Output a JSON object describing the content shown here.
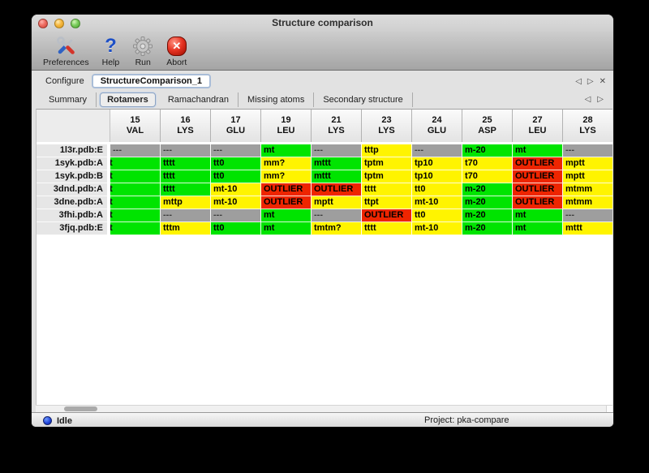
{
  "window": {
    "title": "Structure comparison"
  },
  "toolbar": {
    "items": [
      {
        "label": "Preferences",
        "icon": "preferences-tools-icon"
      },
      {
        "label": "Help",
        "icon": "help-question-icon"
      },
      {
        "label": "Run",
        "icon": "run-gear-icon"
      },
      {
        "label": "Abort",
        "icon": "abort-icon"
      }
    ]
  },
  "configure": {
    "label": "Configure",
    "value": "StructureComparison_1",
    "nav_prev": "◁",
    "nav_next": "▷",
    "nav_close": "✕"
  },
  "tabs": {
    "items": [
      {
        "label": "Summary",
        "selected": false
      },
      {
        "label": "Rotamers",
        "selected": true
      },
      {
        "label": "Ramachandran",
        "selected": false
      },
      {
        "label": "Missing atoms",
        "selected": false
      },
      {
        "label": "Secondary structure",
        "selected": false
      }
    ],
    "nav_prev": "◁",
    "nav_next": "▷"
  },
  "colors": {
    "g": "#00e400",
    "y": "#fff400",
    "r": "#ee2500",
    "x": "#9e9e9e"
  },
  "color_legend": {
    "g": "favored",
    "y": "allowed",
    "r": "outlier",
    "x": "not-present"
  },
  "table": {
    "columns": [
      {
        "num": "15",
        "res": "VAL"
      },
      {
        "num": "16",
        "res": "LYS"
      },
      {
        "num": "17",
        "res": "GLU"
      },
      {
        "num": "19",
        "res": "LEU"
      },
      {
        "num": "21",
        "res": "LYS"
      },
      {
        "num": "23",
        "res": "LYS"
      },
      {
        "num": "24",
        "res": "GLU"
      },
      {
        "num": "25",
        "res": "ASP"
      },
      {
        "num": "27",
        "res": "LEU"
      },
      {
        "num": "28",
        "res": "LYS"
      }
    ],
    "rows": [
      {
        "label": "1l3r.pdb:E",
        "cells": [
          {
            "v": "---",
            "c": "x"
          },
          {
            "v": "---",
            "c": "x"
          },
          {
            "v": "---",
            "c": "x"
          },
          {
            "v": "mt",
            "c": "g"
          },
          {
            "v": "---",
            "c": "x"
          },
          {
            "v": "tttp",
            "c": "y"
          },
          {
            "v": "---",
            "c": "x"
          },
          {
            "v": "m-20",
            "c": "g"
          },
          {
            "v": "mt",
            "c": "g"
          },
          {
            "v": "---",
            "c": "x"
          },
          {
            "v": "",
            "c": "g",
            "f": "part"
          }
        ]
      },
      {
        "label": "1syk.pdb:A",
        "cells": [
          {
            "v": "t",
            "c": "g",
            "f": "clip"
          },
          {
            "v": "tttt",
            "c": "g"
          },
          {
            "v": "tt0",
            "c": "g"
          },
          {
            "v": "mm?",
            "c": "y"
          },
          {
            "v": "mttt",
            "c": "g"
          },
          {
            "v": "tptm",
            "c": "y"
          },
          {
            "v": "tp10",
            "c": "y"
          },
          {
            "v": "t70",
            "c": "y"
          },
          {
            "v": "OUTLIER",
            "c": "r"
          },
          {
            "v": "mptt",
            "c": "y"
          },
          {
            "v": "",
            "c": "g",
            "f": "part"
          }
        ]
      },
      {
        "label": "1syk.pdb:B",
        "cells": [
          {
            "v": "t",
            "c": "g",
            "f": "clip"
          },
          {
            "v": "tttt",
            "c": "g"
          },
          {
            "v": "tt0",
            "c": "g"
          },
          {
            "v": "mm?",
            "c": "y"
          },
          {
            "v": "mttt",
            "c": "g"
          },
          {
            "v": "tptm",
            "c": "y"
          },
          {
            "v": "tp10",
            "c": "y"
          },
          {
            "v": "t70",
            "c": "y"
          },
          {
            "v": "OUTLIER",
            "c": "r"
          },
          {
            "v": "mptt",
            "c": "y"
          },
          {
            "v": "",
            "c": "g",
            "f": "part"
          }
        ]
      },
      {
        "label": "3dnd.pdb:A",
        "cells": [
          {
            "v": "t",
            "c": "g",
            "f": "clip"
          },
          {
            "v": "tttt",
            "c": "g"
          },
          {
            "v": "mt-10",
            "c": "y"
          },
          {
            "v": "OUTLIER",
            "c": "r"
          },
          {
            "v": "OUTLIER",
            "c": "r"
          },
          {
            "v": "tttt",
            "c": "y"
          },
          {
            "v": "tt0",
            "c": "y"
          },
          {
            "v": "m-20",
            "c": "g"
          },
          {
            "v": "OUTLIER",
            "c": "r"
          },
          {
            "v": "mtmm",
            "c": "y"
          },
          {
            "v": "",
            "c": "g",
            "f": "part"
          }
        ]
      },
      {
        "label": "3dne.pdb:A",
        "cells": [
          {
            "v": "t",
            "c": "g",
            "f": "clip"
          },
          {
            "v": "mttp",
            "c": "y"
          },
          {
            "v": "mt-10",
            "c": "y"
          },
          {
            "v": "OUTLIER",
            "c": "r"
          },
          {
            "v": "mptt",
            "c": "y"
          },
          {
            "v": "ttpt",
            "c": "y"
          },
          {
            "v": "mt-10",
            "c": "y"
          },
          {
            "v": "m-20",
            "c": "g"
          },
          {
            "v": "OUTLIER",
            "c": "r"
          },
          {
            "v": "mtmm",
            "c": "y"
          },
          {
            "v": "",
            "c": "g",
            "f": "part"
          }
        ]
      },
      {
        "label": "3fhi.pdb:A",
        "cells": [
          {
            "v": "t",
            "c": "g",
            "f": "clip"
          },
          {
            "v": "---",
            "c": "x"
          },
          {
            "v": "---",
            "c": "x"
          },
          {
            "v": "mt",
            "c": "g"
          },
          {
            "v": "---",
            "c": "x"
          },
          {
            "v": "OUTLIER",
            "c": "r"
          },
          {
            "v": "tt0",
            "c": "y"
          },
          {
            "v": "m-20",
            "c": "g"
          },
          {
            "v": "mt",
            "c": "g"
          },
          {
            "v": "---",
            "c": "x"
          },
          {
            "v": "",
            "c": "y",
            "f": "part"
          }
        ]
      },
      {
        "label": "3fjq.pdb:E",
        "cells": [
          {
            "v": "t",
            "c": "g",
            "f": "clip"
          },
          {
            "v": "tttm",
            "c": "y"
          },
          {
            "v": "tt0",
            "c": "g"
          },
          {
            "v": "mt",
            "c": "g"
          },
          {
            "v": "tmtm?",
            "c": "y"
          },
          {
            "v": "tttt",
            "c": "y"
          },
          {
            "v": "mt-10",
            "c": "y"
          },
          {
            "v": "m-20",
            "c": "g"
          },
          {
            "v": "mt",
            "c": "g"
          },
          {
            "v": "mttt",
            "c": "y"
          },
          {
            "v": "",
            "c": "g",
            "f": "part"
          }
        ]
      }
    ]
  },
  "statusbar": {
    "status": "Idle",
    "project": "Project: pka-compare"
  }
}
